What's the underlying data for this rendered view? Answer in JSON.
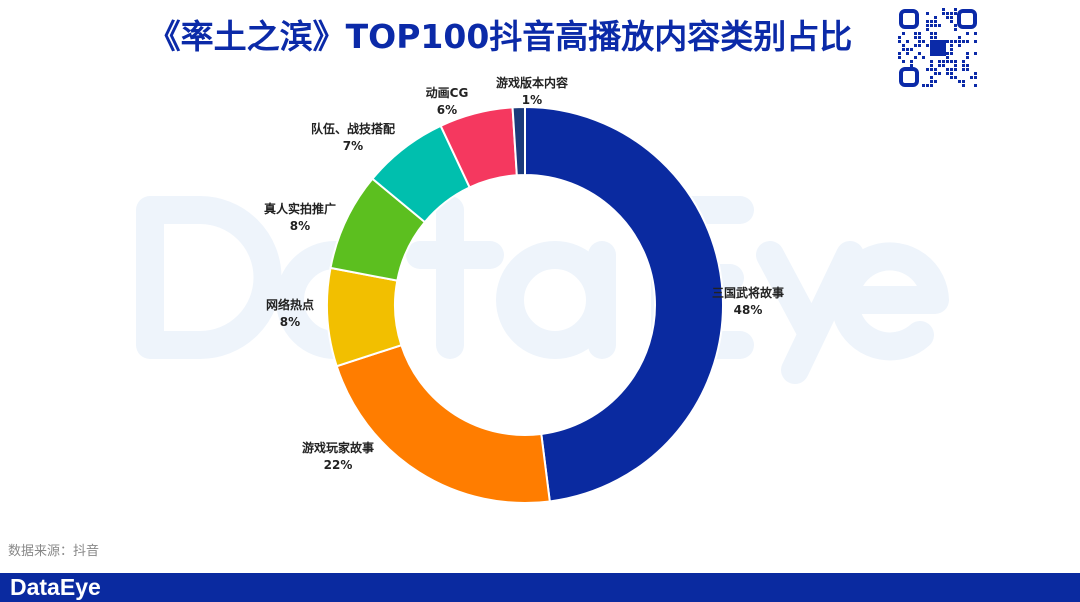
{
  "title": "《率土之滨》TOP100抖音高播放内容类别占比",
  "watermark": "DataEye",
  "source": "数据来源：抖音",
  "brand": "DataEye",
  "chart_data": {
    "type": "pie",
    "subtype": "donut",
    "title": "《率土之滨》TOP100抖音高播放内容类别占比",
    "unit": "%",
    "slices": [
      {
        "label": "三国武将故事",
        "value": 48,
        "value_label": "48%",
        "color": "#0a2aa0"
      },
      {
        "label": "游戏玩家故事",
        "value": 22,
        "value_label": "22%",
        "color": "#ff7d00"
      },
      {
        "label": "网络热点",
        "value": 8,
        "value_label": "8%",
        "color": "#f2bf00"
      },
      {
        "label": "真人实拍推广",
        "value": 8,
        "value_label": "8%",
        "color": "#5cbf1f"
      },
      {
        "label": "队伍、战技搭配",
        "value": 7,
        "value_label": "7%",
        "color": "#00bfae"
      },
      {
        "label": "动画CG",
        "value": 6,
        "value_label": "6%",
        "color": "#f5385f"
      },
      {
        "label": "游戏版本内容",
        "value": 1,
        "value_label": "1%",
        "color": "#1b3a7a"
      }
    ]
  }
}
